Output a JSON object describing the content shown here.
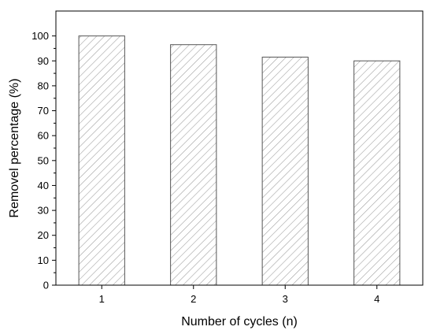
{
  "chart_data": {
    "type": "bar",
    "categories": [
      "1",
      "2",
      "3",
      "4"
    ],
    "values": [
      100,
      96.5,
      91.5,
      90
    ],
    "xlabel": "Number of  cycles (n)",
    "ylabel": "Removel percentage (%)",
    "ylim": [
      0,
      110
    ],
    "yticks": [
      0,
      10,
      20,
      30,
      40,
      50,
      60,
      70,
      80,
      90,
      100
    ],
    "bar_fill": "hatched",
    "hatch_color": "#9a9a9a",
    "bar_edge_color": "#555555",
    "grid": false,
    "legend": "none"
  }
}
